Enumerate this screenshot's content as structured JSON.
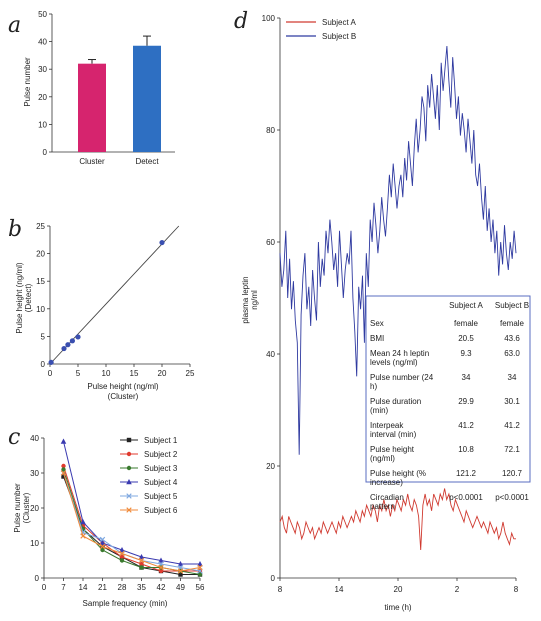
{
  "chart_data": [
    {
      "panel": "a",
      "type": "bar",
      "categories": [
        "Cluster",
        "Detect"
      ],
      "values": [
        32,
        38.5
      ],
      "errors": [
        1.5,
        3.5
      ],
      "colors": [
        "#d6246e",
        "#2e6fc2"
      ],
      "ylabel": "Pulse number",
      "ylim": [
        0,
        50
      ],
      "yticks": [
        0,
        10,
        20,
        30,
        40,
        50
      ],
      "grid": false
    },
    {
      "panel": "b",
      "type": "scatter",
      "points": [
        [
          0.2,
          0.3
        ],
        [
          2.5,
          2.8
        ],
        [
          3.2,
          3.5
        ],
        [
          4,
          4.2
        ],
        [
          5,
          4.9
        ],
        [
          20,
          22
        ]
      ],
      "fit_line": [
        [
          0,
          0
        ],
        [
          23,
          25
        ]
      ],
      "point_color": "#3a4fb0",
      "xlabel": [
        "Pulse height (ng/ml)",
        "(Cluster)"
      ],
      "ylabel": [
        "Pulse height (ng/ml)",
        "(Detect)"
      ],
      "xlim": [
        0,
        25
      ],
      "ylim": [
        0,
        25
      ],
      "xticks": [
        0,
        5,
        10,
        15,
        20,
        25
      ],
      "yticks": [
        0,
        5,
        10,
        15,
        20,
        25
      ],
      "grid": false
    },
    {
      "panel": "c",
      "type": "line",
      "x": [
        7,
        14,
        21,
        28,
        35,
        42,
        49,
        56
      ],
      "series": [
        {
          "name": "Subject 1",
          "color": "#222222",
          "marker": "square",
          "values": [
            29,
            14,
            9,
            6,
            3,
            2,
            1,
            1
          ]
        },
        {
          "name": "Subject 2",
          "color": "#e03a2e",
          "marker": "circle",
          "values": [
            32,
            15,
            10,
            6,
            4,
            2,
            2,
            2
          ]
        },
        {
          "name": "Subject 3",
          "color": "#3a7a2e",
          "marker": "circle",
          "values": [
            31,
            14,
            8,
            5,
            3,
            3,
            2,
            1
          ]
        },
        {
          "name": "Subject 4",
          "color": "#3a3ab0",
          "marker": "triangle",
          "values": [
            39,
            16,
            10,
            8,
            6,
            5,
            4,
            4
          ]
        },
        {
          "name": "Subject 5",
          "color": "#7fa8e0",
          "marker": "x",
          "values": [
            30,
            13,
            11,
            7,
            5,
            4,
            3,
            2
          ]
        },
        {
          "name": "Subject 6",
          "color": "#f08a3a",
          "marker": "x",
          "values": [
            30,
            12,
            9,
            7,
            5,
            3,
            2,
            3
          ]
        }
      ],
      "xlabel": "Sample frequency (min)",
      "ylabel": [
        "Pulse number",
        "(Cluster)"
      ],
      "xlim": [
        0,
        56
      ],
      "ylim": [
        0,
        40
      ],
      "xticks": [
        0,
        7,
        14,
        21,
        28,
        35,
        42,
        49,
        56
      ],
      "yticks": [
        0,
        10,
        20,
        30,
        40
      ],
      "legend": "right",
      "grid": false
    },
    {
      "panel": "d",
      "type": "line",
      "series": [
        {
          "name": "Subject A",
          "color": "#d03a30",
          "values": [
            10,
            11,
            9,
            8,
            11,
            10,
            9,
            8,
            10,
            9,
            7,
            8,
            10,
            9,
            8,
            9,
            7,
            8,
            9,
            8,
            10,
            9,
            8,
            9,
            10,
            9,
            8,
            10,
            9,
            11,
            10,
            9,
            10,
            11,
            10,
            12,
            11,
            10,
            12,
            11,
            13,
            12,
            11,
            13,
            12,
            10,
            13,
            12,
            14,
            12,
            13,
            11,
            13,
            12,
            14,
            13,
            12,
            14,
            13,
            15,
            13,
            12,
            14,
            13,
            11,
            5,
            13,
            15,
            13,
            14,
            12,
            15,
            14,
            13,
            15,
            14,
            16,
            14,
            15,
            13,
            12,
            14,
            13,
            12,
            11,
            10,
            12,
            11,
            10,
            9,
            10,
            11,
            10,
            9,
            10,
            9,
            8,
            10,
            9,
            8,
            9,
            7,
            8,
            10,
            8,
            7,
            6,
            8,
            7,
            7
          ]
        },
        {
          "name": "Subject B",
          "color": "#2f3aa0",
          "values": [
            58,
            52,
            55,
            62,
            50,
            57,
            48,
            53,
            46,
            42,
            22,
            47,
            54,
            58,
            48,
            52,
            45,
            55,
            50,
            46,
            60,
            52,
            57,
            54,
            62,
            58,
            64,
            60,
            55,
            58,
            52,
            62,
            56,
            50,
            55,
            58,
            56,
            62,
            50,
            44,
            36,
            52,
            48,
            54,
            42,
            58,
            52,
            64,
            60,
            67,
            63,
            58,
            62,
            68,
            64,
            61,
            66,
            72,
            68,
            74,
            70,
            66,
            70,
            72,
            68,
            75,
            71,
            78,
            74,
            70,
            77,
            82,
            76,
            80,
            86,
            84,
            78,
            88,
            84,
            90,
            86,
            82,
            88,
            80,
            92,
            87,
            91,
            95,
            89,
            84,
            93,
            88,
            82,
            86,
            79,
            83,
            80,
            76,
            82,
            78,
            74,
            80,
            72,
            70,
            74,
            68,
            64,
            70,
            62,
            66,
            60,
            64,
            58,
            62,
            54,
            60,
            56,
            63,
            58,
            55,
            60,
            57,
            62,
            58
          ]
        }
      ],
      "xlabel": "time (h)",
      "ylabel": [
        "plasma leptin",
        "ng/ml"
      ],
      "ylim": [
        0,
        100
      ],
      "yticks": [
        0,
        20,
        40,
        60,
        80,
        100
      ],
      "xtick_labels": [
        "8",
        "14",
        "20",
        "2",
        "8"
      ],
      "legend": "top-left",
      "grid": false,
      "table": {
        "headers": [
          "",
          "Subject A",
          "Subject B"
        ],
        "rows": [
          [
            "Sex",
            "female",
            "female"
          ],
          [
            "BMI",
            "20.5",
            "43.6"
          ],
          [
            "Mean 24 h leptin levels (ng/ml)",
            "9.3",
            "63.0"
          ],
          [
            "Pulse number (24 h)",
            "34",
            "34"
          ],
          [
            "Pulse duration (min)",
            "29.9",
            "30.1"
          ],
          [
            "Interpeak interval (min)",
            "41.2",
            "41.2"
          ],
          [
            "Pulse height (ng/ml)",
            "10.8",
            "72.1"
          ],
          [
            "Pulse height (% increase)",
            "121.2",
            "120.7"
          ],
          [
            "Circadian pattern",
            "p<0.0001",
            "p<0.0001"
          ]
        ]
      }
    }
  ],
  "panel_letters": [
    "a",
    "b",
    "c",
    "d"
  ]
}
